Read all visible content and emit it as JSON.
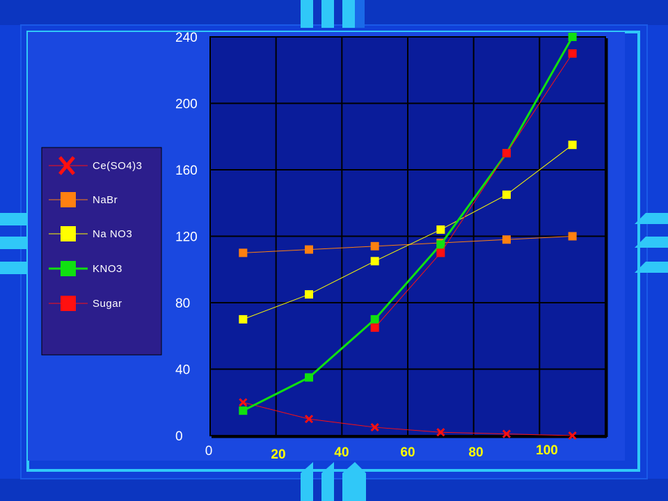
{
  "colors": {
    "background": "#1040d8",
    "frame": "#30c8f8",
    "plot_bg": "#0a1c9a",
    "grid": "#000000",
    "legend_bg": "#2c1e8c",
    "axis_text": "#ffffff",
    "x_sub_text": "#ffff00"
  },
  "chart_data": {
    "type": "line",
    "title": "",
    "xlabel": "",
    "ylabel": "",
    "ylim": [
      0,
      240
    ],
    "yticks": [
      "0",
      "40",
      "80",
      "120",
      "160",
      "200",
      "240"
    ],
    "xticks_main": [
      "0"
    ],
    "xticks_sub": [
      "20",
      "40",
      "60",
      "80",
      "100"
    ],
    "x": [
      10,
      30,
      50,
      70,
      90,
      110
    ],
    "grid": true,
    "legend_position": "left",
    "series": [
      {
        "name": "Ce(SO4)3",
        "color": "#ff1010",
        "marker": "x",
        "line_width": 1,
        "values": [
          20,
          10,
          5,
          2,
          1,
          0
        ]
      },
      {
        "name": "NaBr",
        "color": "#ff8010",
        "marker": "square",
        "line_width": 1,
        "values": [
          110,
          112,
          114,
          116,
          118,
          120
        ]
      },
      {
        "name": "Na NO3",
        "color": "#ffff00",
        "marker": "square",
        "line_width": 1,
        "values": [
          70,
          85,
          105,
          124,
          145,
          175
        ]
      },
      {
        "name": "KNO3",
        "color": "#10e010",
        "marker": "square",
        "line_width": 3,
        "values": [
          15,
          35,
          70,
          115,
          170,
          240
        ]
      },
      {
        "name": "Sugar",
        "color": "#ff1010",
        "marker": "square",
        "line_width": 1,
        "values": [
          null,
          null,
          65,
          110,
          170,
          230
        ]
      }
    ]
  }
}
